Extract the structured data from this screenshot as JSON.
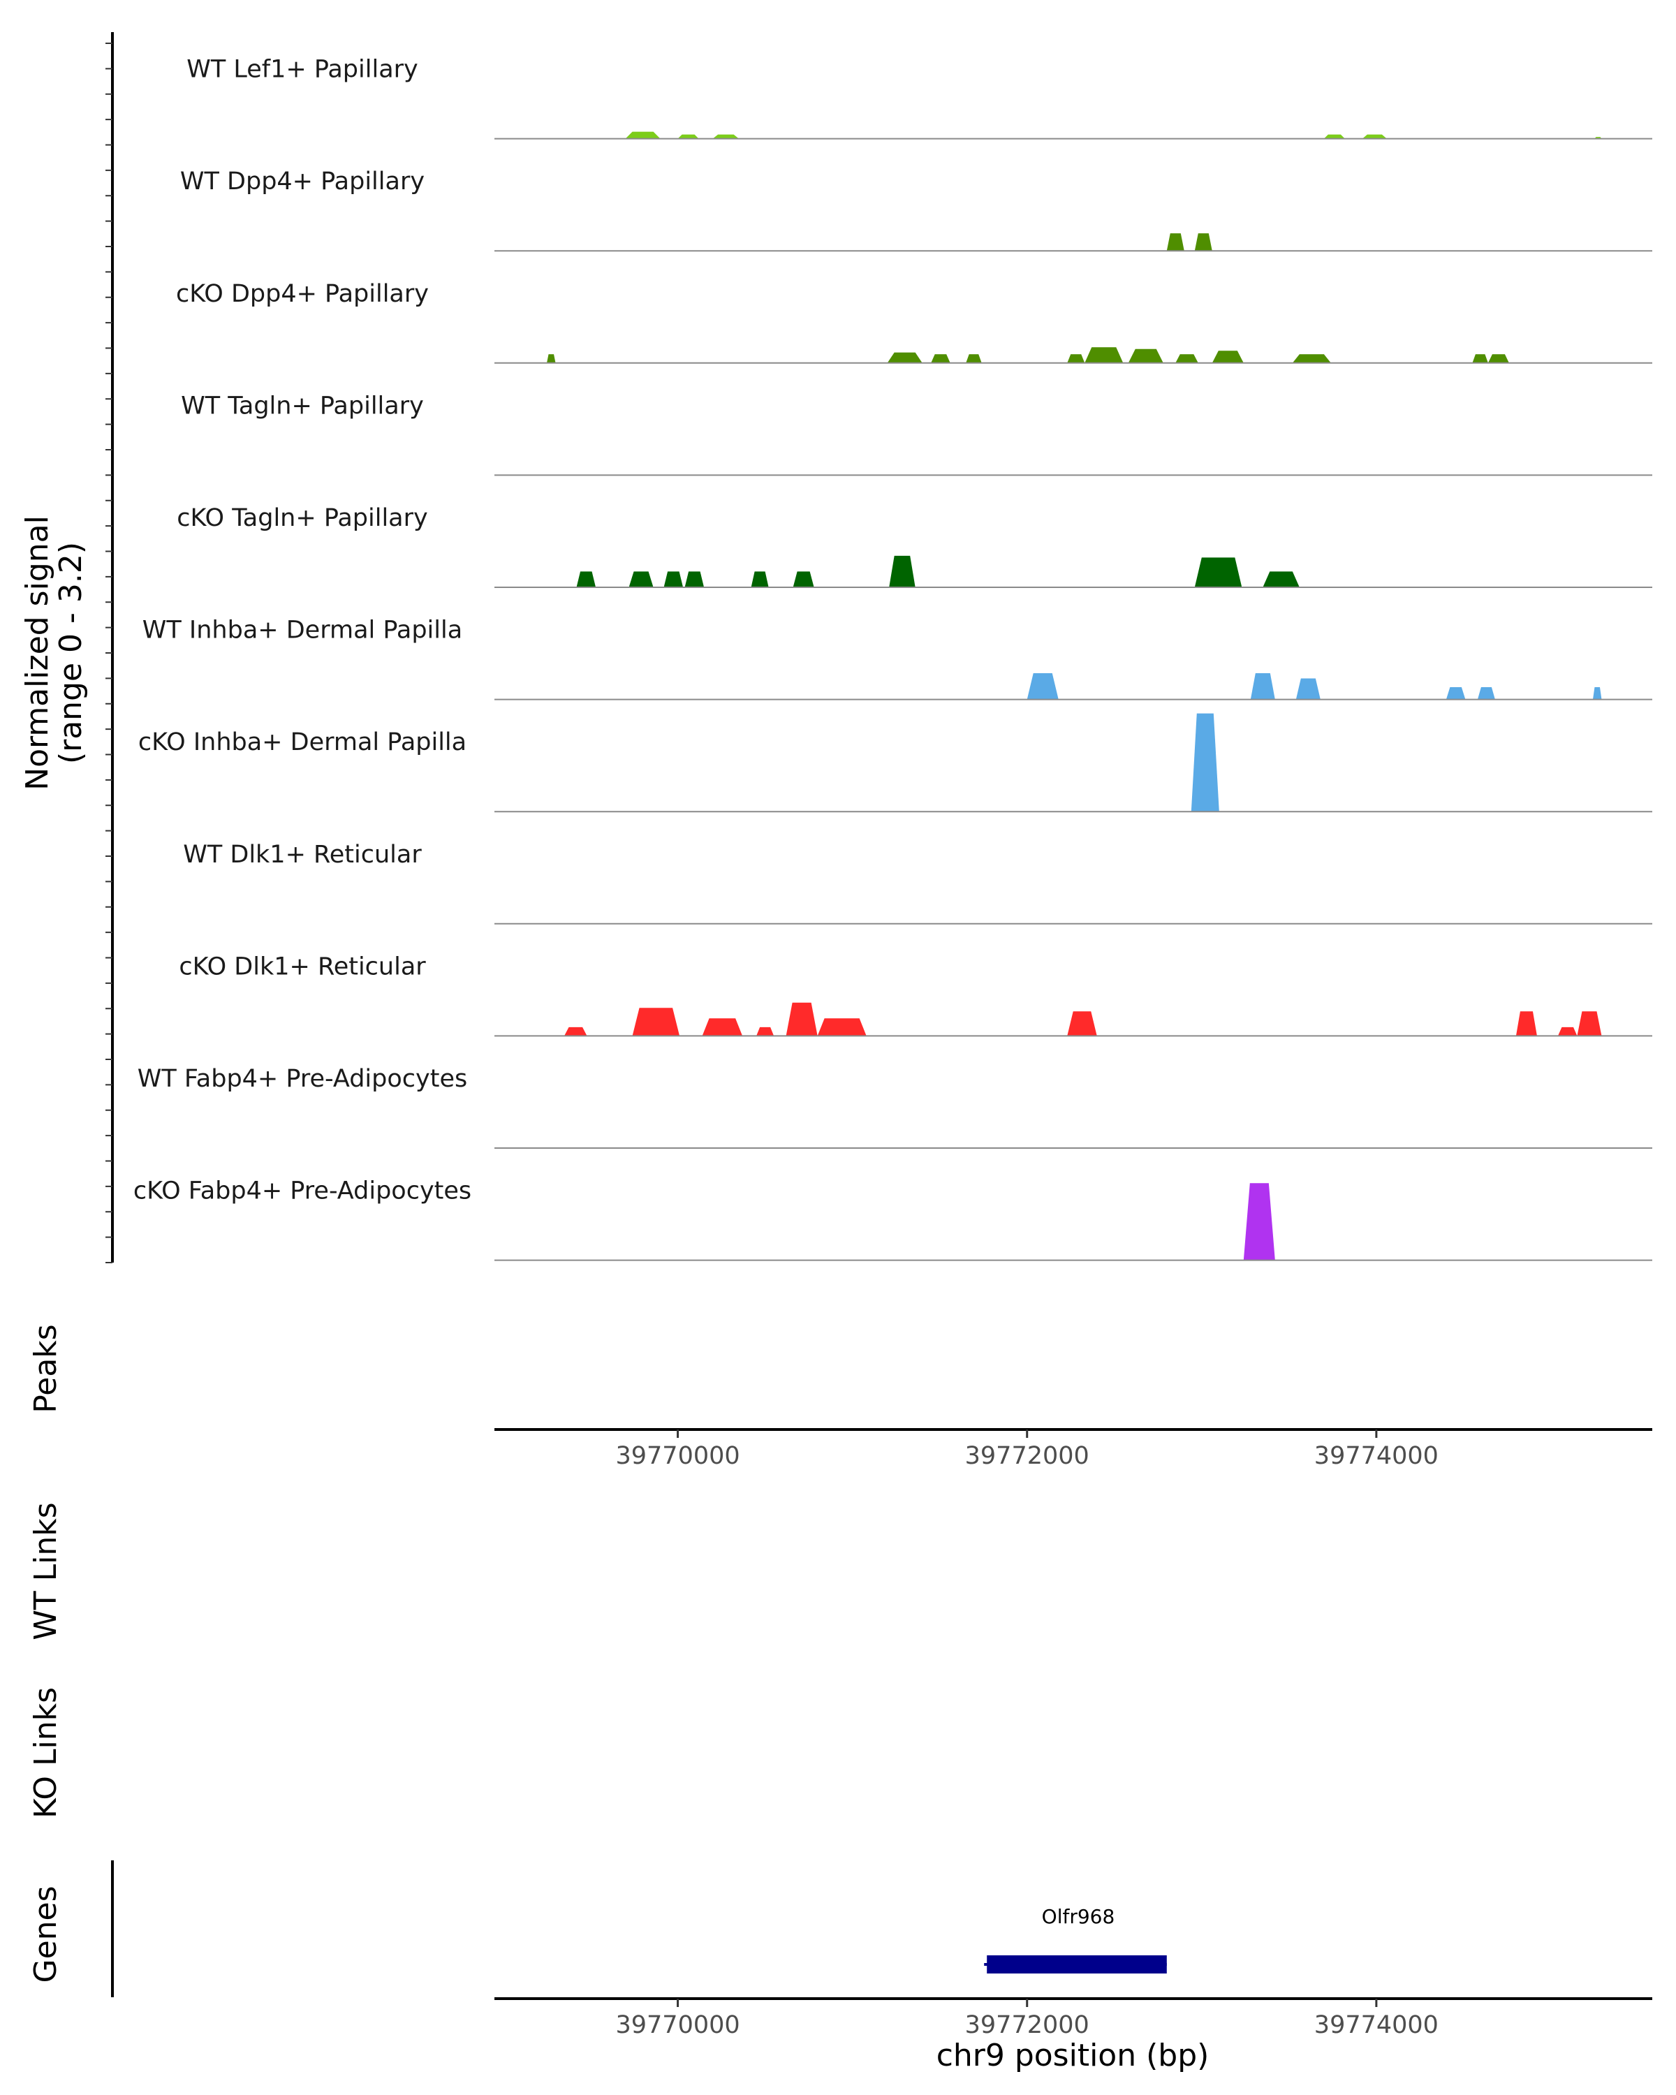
{
  "chart_data": {
    "type": "area",
    "title": "",
    "chromosome": "chr9",
    "xlabel": "chr9 position (bp)",
    "xlim": [
      39768950,
      39775580
    ],
    "x_ticks": [
      39770000,
      39772000,
      39774000
    ],
    "x_tick_labels": [
      "39770000",
      "39772000",
      "39774000"
    ],
    "coverage_axis_label_line1": "Normalized signal",
    "coverage_axis_label_line2": "(range 0 - 3.2)",
    "ylim": [
      0,
      3.2
    ],
    "peaks_label": "Peaks",
    "wt_links_label": "WT Links",
    "ko_links_label": "KO Links",
    "genes_label": "Genes",
    "genes": [
      {
        "name": "Olfr968",
        "start": 39771770,
        "end": 39772800,
        "color": "#00008b"
      }
    ],
    "tracks": [
      {
        "name": "WT Lef1+ Papillary",
        "color": "#7ccd1a",
        "peaks": [
          [
            39769700,
            39769900,
            0.2
          ],
          [
            39770000,
            39770120,
            0.12
          ],
          [
            39770200,
            39770350,
            0.12
          ],
          [
            39773700,
            39773820,
            0.12
          ],
          [
            39773920,
            39774060,
            0.12
          ],
          [
            39775250,
            39775290,
            0.05
          ]
        ]
      },
      {
        "name": "WT Dpp4+ Papillary",
        "color": "#4f8e00",
        "peaks": [
          [
            39772800,
            39772900,
            0.5
          ],
          [
            39772960,
            39773060,
            0.5
          ]
        ]
      },
      {
        "name": "cKO Dpp4+ Papillary",
        "color": "#4f8e00",
        "peaks": [
          [
            39769250,
            39769300,
            0.25
          ],
          [
            39771200,
            39771400,
            0.3
          ],
          [
            39771450,
            39771560,
            0.25
          ],
          [
            39771650,
            39771740,
            0.25
          ],
          [
            39772230,
            39772330,
            0.25
          ],
          [
            39772330,
            39772550,
            0.45
          ],
          [
            39772580,
            39772780,
            0.4
          ],
          [
            39772850,
            39772980,
            0.25
          ],
          [
            39773060,
            39773240,
            0.35
          ],
          [
            39773520,
            39773740,
            0.25
          ],
          [
            39774550,
            39774640,
            0.25
          ],
          [
            39774640,
            39774760,
            0.25
          ]
        ]
      },
      {
        "name": "WT Tagln+ Papillary",
        "color": "#006400",
        "peaks": []
      },
      {
        "name": "cKO Tagln+ Papillary",
        "color": "#006400",
        "peaks": [
          [
            39769420,
            39769530,
            0.45
          ],
          [
            39769720,
            39769860,
            0.45
          ],
          [
            39769920,
            39770030,
            0.45
          ],
          [
            39770040,
            39770150,
            0.45
          ],
          [
            39770420,
            39770520,
            0.45
          ],
          [
            39770660,
            39770780,
            0.45
          ],
          [
            39771210,
            39771360,
            0.9
          ],
          [
            39772960,
            39773230,
            0.85
          ],
          [
            39773350,
            39773560,
            0.45
          ]
        ]
      },
      {
        "name": "WT Inhba+ Dermal Papilla",
        "color": "#5aaae6",
        "peaks": [
          [
            39772000,
            39772180,
            0.75
          ],
          [
            39773280,
            39773420,
            0.75
          ],
          [
            39773540,
            39773680,
            0.6
          ],
          [
            39774400,
            39774510,
            0.35
          ],
          [
            39774580,
            39774680,
            0.35
          ],
          [
            39775240,
            39775290,
            0.35
          ]
        ]
      },
      {
        "name": "cKO Inhba+ Dermal Papilla",
        "color": "#5aaae6",
        "peaks": [
          [
            39772940,
            39773100,
            2.8
          ]
        ]
      },
      {
        "name": "WT Dlk1+ Reticular",
        "color": "#ff2a2a",
        "peaks": []
      },
      {
        "name": "cKO Dlk1+ Reticular",
        "color": "#ff2a2a",
        "peaks": [
          [
            39769350,
            39769480,
            0.25
          ],
          [
            39769740,
            39770010,
            0.8
          ],
          [
            39770140,
            39770370,
            0.5
          ],
          [
            39770450,
            39770550,
            0.25
          ],
          [
            39770620,
            39770800,
            0.95
          ],
          [
            39770800,
            39771080,
            0.5
          ],
          [
            39772230,
            39772400,
            0.7
          ],
          [
            39774800,
            39774920,
            0.7
          ],
          [
            39775040,
            39775150,
            0.25
          ],
          [
            39775150,
            39775290,
            0.7
          ]
        ]
      },
      {
        "name": "WT Fabp4+ Pre-Adipocytes",
        "color": "#b033f0",
        "peaks": []
      },
      {
        "name": "cKO Fabp4+ Pre-Adipocytes",
        "color": "#b033f0",
        "peaks": [
          [
            39773240,
            39773420,
            2.2
          ]
        ]
      }
    ]
  }
}
